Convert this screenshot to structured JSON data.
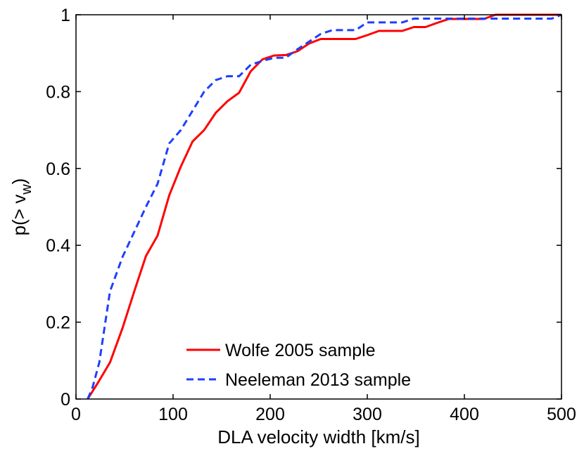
{
  "chart_data": {
    "type": "line",
    "title": "",
    "xlabel": "DLA velocity width  [km/s]",
    "ylabel_main": "p(> v",
    "ylabel_sub": "w",
    "ylabel_close": ")",
    "xlim": [
      0,
      500
    ],
    "ylim": [
      0,
      1
    ],
    "grid": false,
    "legend_position": "bottom-center",
    "x_ticks": [
      0,
      100,
      200,
      300,
      400,
      500
    ],
    "x_tick_labels": [
      "0",
      "100",
      "200",
      "300",
      "400",
      "500"
    ],
    "y_ticks": [
      0,
      0.2,
      0.4,
      0.6,
      0.8,
      1
    ],
    "y_tick_labels": [
      "0",
      "0.2",
      "0.4",
      "0.6",
      "0.8",
      "1"
    ],
    "series": [
      {
        "name": "Wolfe 2005 sample",
        "color": "#ff0000",
        "style": "solid",
        "x": [
          12,
          22,
          35,
          48,
          60,
          72,
          84,
          96,
          108,
          120,
          132,
          144,
          156,
          168,
          180,
          192,
          204,
          216,
          228,
          240,
          252,
          264,
          276,
          288,
          300,
          312,
          324,
          336,
          348,
          360,
          372,
          384,
          396,
          408,
          420,
          432,
          444,
          456,
          500
        ],
        "y": [
          0.0,
          0.04,
          0.095,
          0.185,
          0.28,
          0.372,
          0.425,
          0.53,
          0.605,
          0.67,
          0.7,
          0.745,
          0.775,
          0.797,
          0.853,
          0.884,
          0.894,
          0.895,
          0.905,
          0.925,
          0.937,
          0.937,
          0.937,
          0.937,
          0.947,
          0.958,
          0.958,
          0.958,
          0.968,
          0.968,
          0.979,
          0.989,
          0.989,
          0.989,
          0.989,
          1.0,
          1.0,
          1.0,
          1.0
        ]
      },
      {
        "name": "Neeleman 2013 sample",
        "color": "#1f3fff",
        "style": "dashed",
        "x": [
          12,
          17,
          24,
          35,
          48,
          60,
          72,
          84,
          96,
          108,
          120,
          132,
          144,
          156,
          168,
          180,
          192,
          204,
          216,
          228,
          240,
          252,
          264,
          276,
          288,
          300,
          312,
          324,
          336,
          348,
          360,
          372,
          384,
          396,
          408,
          420,
          432,
          444,
          456,
          468,
          480,
          490,
          500
        ],
        "y": [
          0.0,
          0.03,
          0.095,
          0.28,
          0.37,
          0.435,
          0.5,
          0.56,
          0.665,
          0.7,
          0.75,
          0.8,
          0.83,
          0.84,
          0.84,
          0.87,
          0.88,
          0.888,
          0.888,
          0.91,
          0.93,
          0.95,
          0.96,
          0.96,
          0.96,
          0.98,
          0.98,
          0.98,
          0.98,
          0.99,
          0.99,
          0.99,
          0.99,
          0.99,
          0.99,
          0.99,
          0.99,
          0.99,
          0.99,
          0.99,
          0.99,
          0.99,
          1.0
        ]
      }
    ]
  }
}
